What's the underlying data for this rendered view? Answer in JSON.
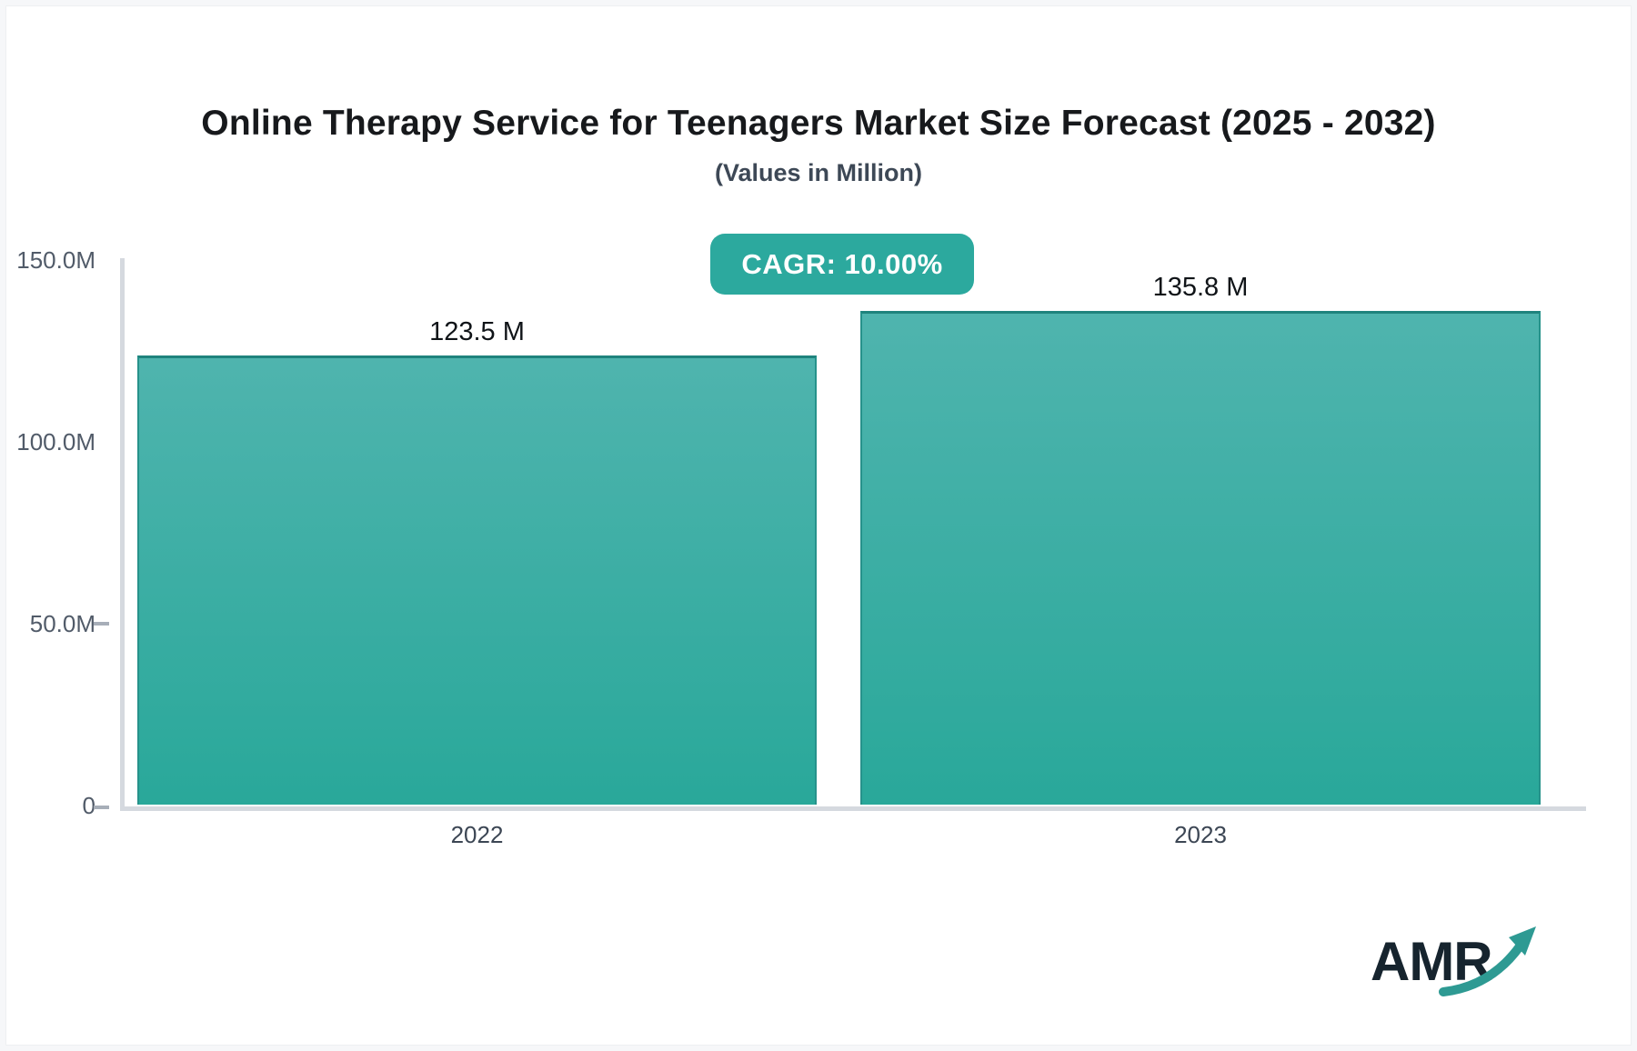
{
  "page": {
    "logo_text": "AMR"
  },
  "chart_data": {
    "type": "bar",
    "title": "Online Therapy Service for Teenagers Market Size Forecast (2025 - 2032)",
    "subtitle": "(Values in Million)",
    "cagr_label": "CAGR: 10.00%",
    "categories": [
      "2022",
      "2023"
    ],
    "values": [
      123.5,
      135.8
    ],
    "value_labels": [
      "123.5 M",
      "135.8 M"
    ],
    "y_ticks": [
      "150.0M",
      "100.0M",
      "50.0M",
      "0"
    ],
    "ylim": [
      0,
      150
    ],
    "unit": "Million",
    "grid": "off",
    "legend": "none",
    "bar_color_top": "#4FB4AE",
    "bar_color_bottom": "#29A89A",
    "bar_border_color": "#26928B",
    "badge_color": "#2CA99E",
    "axis_color": "#D5D9DF",
    "logo_arrow_color": "#2E9A93"
  }
}
